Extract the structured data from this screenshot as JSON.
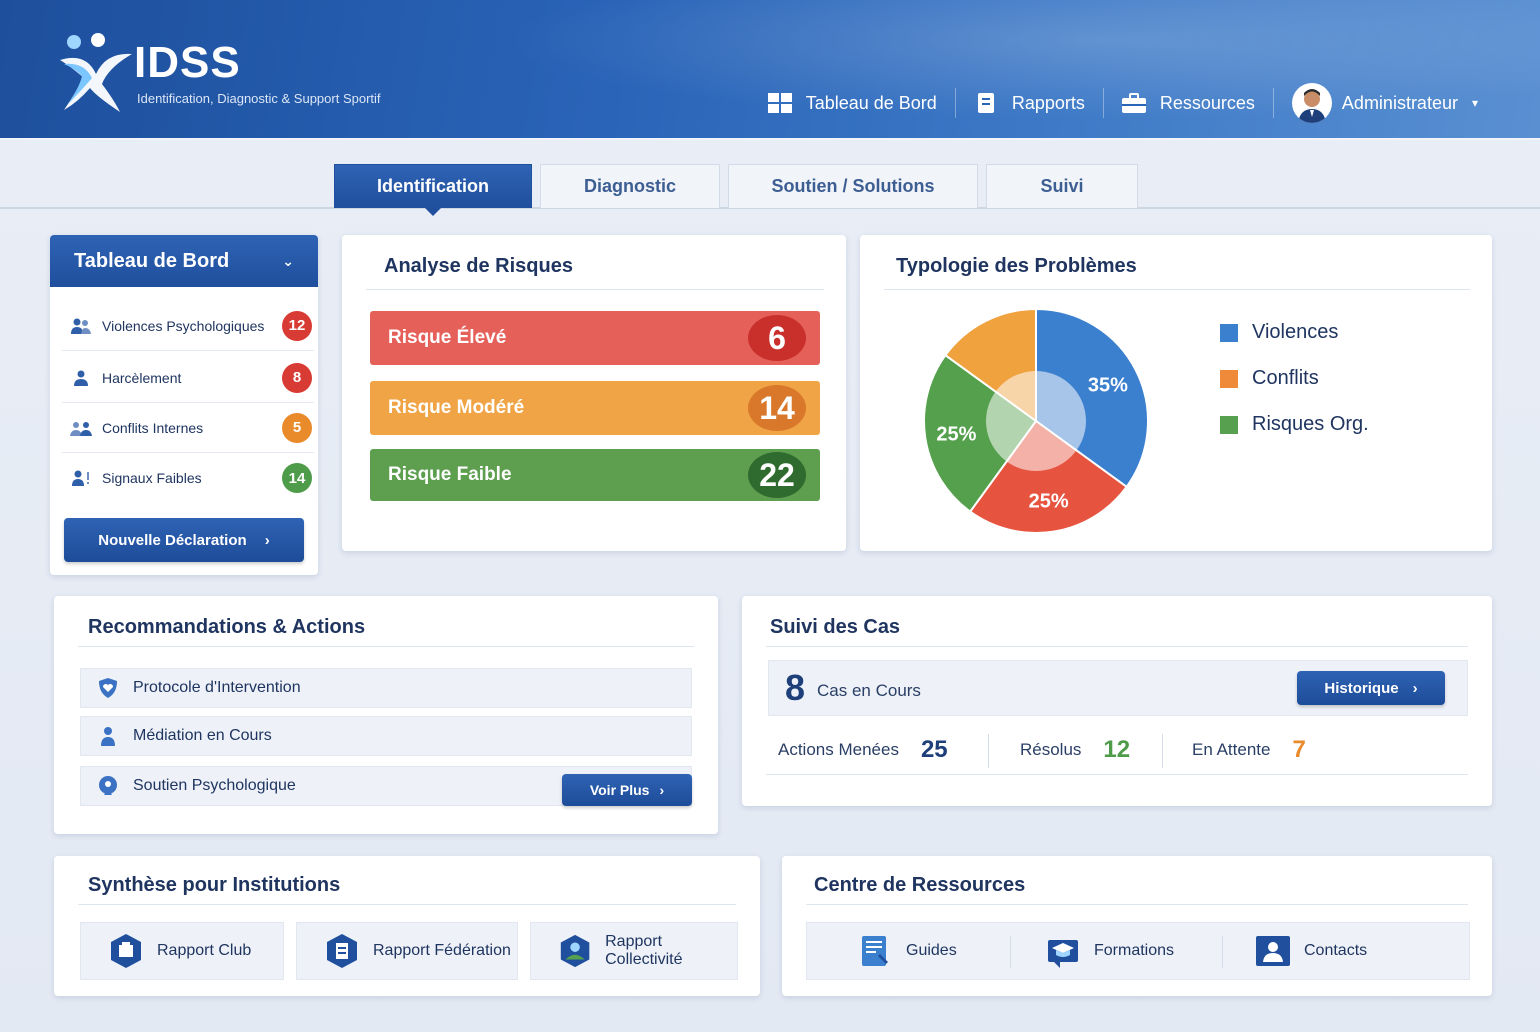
{
  "app": {
    "brand": "IDSS",
    "tagline": "Identification, Diagnostic & Support Sportif"
  },
  "nav": [
    {
      "label": "Tableau de Bord",
      "icon": "grid-icon"
    },
    {
      "label": "Rapports",
      "icon": "document-icon"
    },
    {
      "label": "Ressources",
      "icon": "briefcase-icon"
    },
    {
      "label": "Administrateur",
      "icon": "user-avatar"
    }
  ],
  "tabs": [
    {
      "label": "Identification",
      "active": true
    },
    {
      "label": "Diagnostic",
      "active": false
    },
    {
      "label": "Soutien / Solutions",
      "active": false
    },
    {
      "label": "Suivi",
      "active": false
    }
  ],
  "sidebar": {
    "title": "Tableau de Bord",
    "items": [
      {
        "label": "Violences Psychologiques",
        "count": "12",
        "color": "#d83a34",
        "icon": "people-icon"
      },
      {
        "label": "Harcèlement",
        "count": "8",
        "color": "#d83a34",
        "icon": "person-icon"
      },
      {
        "label": "Conflits Internes",
        "count": "5",
        "color": "#e98a2b",
        "icon": "group-icon"
      },
      {
        "label": "Signaux Faibles",
        "count": "14",
        "color": "#4e9c4a",
        "icon": "people-alert-icon"
      }
    ],
    "cta": "Nouvelle Déclaration"
  },
  "risks": {
    "title": "Analyse de Risques",
    "items": [
      {
        "label": "Risque Élevé",
        "value": "6",
        "color": "#e6605a",
        "dark": "#c9302c"
      },
      {
        "label": "Risque Modéré",
        "value": "14",
        "color": "#f0a445",
        "dark": "#d9782a"
      },
      {
        "label": "Risque Faible",
        "value": "22",
        "color": "#5d9e4f",
        "dark": "#2f6b2e"
      }
    ]
  },
  "typology": {
    "title": "Typologie des Problèmes",
    "legend": [
      {
        "label": "Violences",
        "color": "#3b7fcf"
      },
      {
        "label": "Conflits",
        "color": "#ef8a3a"
      },
      {
        "label": "Risques Org.",
        "color": "#56a050"
      }
    ],
    "chart_data": {
      "type": "pie",
      "slices": [
        {
          "label": "35%",
          "value": 35,
          "color": "#3b7fcf"
        },
        {
          "label": "25%",
          "value": 25,
          "color": "#e6533f"
        },
        {
          "label": "25%",
          "value": 25,
          "color": "#55a04d"
        },
        {
          "label": "",
          "value": 15,
          "color": "#f0a23f"
        }
      ]
    }
  },
  "recommendations": {
    "title": "Recommandations & Actions",
    "items": [
      {
        "label": "Protocole d'Intervention",
        "icon": "shield-heart-icon"
      },
      {
        "label": "Médiation en Cours",
        "icon": "mediation-icon"
      },
      {
        "label": "Soutien Psychologique",
        "icon": "support-icon"
      }
    ],
    "more": "Voir Plus"
  },
  "cases": {
    "title": "Suivi des Cas",
    "count": "8",
    "count_label": "Cas en Cours",
    "history": "Historique",
    "stats": [
      {
        "label": "Actions Menées",
        "value": "25",
        "color": "#1f3f7a"
      },
      {
        "label": "Résolus",
        "value": "12",
        "color": "#4e9c4a"
      },
      {
        "label": "En Attente",
        "value": "7",
        "color": "#e98a2b"
      }
    ]
  },
  "synthesis": {
    "title": "Synthèse pour Institutions",
    "items": [
      {
        "label": "Rapport Club",
        "icon": "club-report-icon"
      },
      {
        "label": "Rapport Fédération",
        "icon": "federation-report-icon"
      },
      {
        "label": "Rapport Collectivité",
        "icon": "community-report-icon"
      }
    ]
  },
  "resources": {
    "title": "Centre de Ressources",
    "items": [
      {
        "label": "Guides",
        "icon": "guide-icon"
      },
      {
        "label": "Formations",
        "icon": "graduation-cap-icon"
      },
      {
        "label": "Contacts",
        "icon": "contact-card-icon"
      }
    ]
  }
}
